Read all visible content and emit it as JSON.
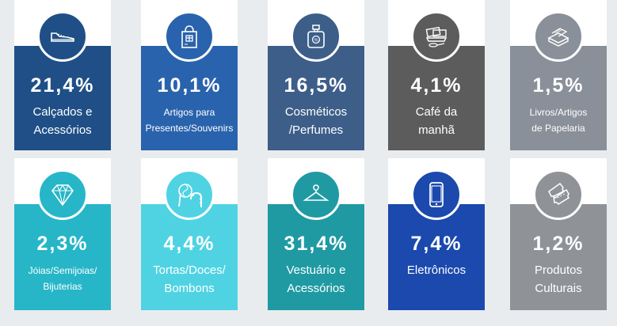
{
  "chart_data": {
    "type": "table",
    "title": "",
    "unit": "%",
    "items": [
      {
        "value_label": "21,4%",
        "value": 21.4,
        "label": "Calçados e\nAcessórios",
        "icon": "sneaker-icon",
        "color": "#1f4f86"
      },
      {
        "value_label": "10,1%",
        "value": 10.1,
        "label": "Artigos para\nPresentes/Souvenirs",
        "icon": "gift-bag-icon",
        "color": "#2a63ad"
      },
      {
        "value_label": "16,5%",
        "value": 16.5,
        "label": "Cosméticos\n/Perfumes",
        "icon": "perfume-bottle-icon",
        "color": "#3d5e89"
      },
      {
        "value_label": "4,1%",
        "value": 4.1,
        "label": "Café da\nmanhã",
        "icon": "breakfast-icon",
        "color": "#5c5c5c"
      },
      {
        "value_label": "1,5%",
        "value": 1.5,
        "label": "Livros/Artigos\nde Papelaria",
        "icon": "books-icon",
        "color": "#8a9099"
      },
      {
        "value_label": "2,3%",
        "value": 2.3,
        "label": "Jóias/Semijoias/\nBijuterias",
        "icon": "diamond-icon",
        "color": "#26b6c8"
      },
      {
        "value_label": "4,4%",
        "value": 4.4,
        "label": "Tortas/Doces/\nBombons",
        "icon": "candy-icon",
        "color": "#4fd3e3"
      },
      {
        "value_label": "31,4%",
        "value": 31.4,
        "label": "Vestuário e\nAcessórios",
        "icon": "hanger-icon",
        "color": "#1f9aa3"
      },
      {
        "value_label": "7,4%",
        "value": 7.4,
        "label": "Eletrônicos",
        "icon": "smartphone-icon",
        "color": "#1b49ad"
      },
      {
        "value_label": "1,2%",
        "value": 1.2,
        "label": "Produtos\nCulturais",
        "icon": "tickets-icon",
        "color": "#8f9398"
      }
    ]
  }
}
